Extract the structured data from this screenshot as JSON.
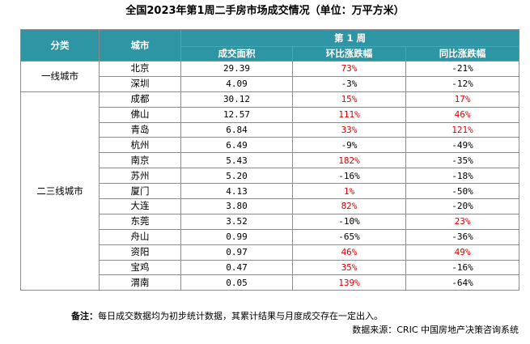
{
  "title": "全国2023年第1周二手房市场成交情况（单位：万平方米）",
  "headers": {
    "category": "分类",
    "city": "城市",
    "week": "第 1 周",
    "area": "成交面积",
    "mom": "环比涨跌幅",
    "yoy": "同比涨跌幅"
  },
  "groups": [
    {
      "name": "一线城市",
      "rows": [
        {
          "city": "北京",
          "area": "29.39",
          "mom": "73%",
          "yoy": "-21%"
        },
        {
          "city": "深圳",
          "area": "4.09",
          "mom": "-3%",
          "yoy": "-12%"
        }
      ]
    },
    {
      "name": "二三线城市",
      "rows": [
        {
          "city": "成都",
          "area": "30.12",
          "mom": "15%",
          "yoy": "17%"
        },
        {
          "city": "佛山",
          "area": "12.57",
          "mom": "111%",
          "yoy": "46%"
        },
        {
          "city": "青岛",
          "area": "6.84",
          "mom": "33%",
          "yoy": "121%"
        },
        {
          "city": "杭州",
          "area": "6.49",
          "mom": "-9%",
          "yoy": "-49%"
        },
        {
          "city": "南京",
          "area": "5.43",
          "mom": "182%",
          "yoy": "-35%"
        },
        {
          "city": "苏州",
          "area": "5.20",
          "mom": "-16%",
          "yoy": "-18%"
        },
        {
          "city": "厦门",
          "area": "4.13",
          "mom": "1%",
          "yoy": "-50%"
        },
        {
          "city": "大连",
          "area": "3.80",
          "mom": "82%",
          "yoy": "-20%"
        },
        {
          "city": "东莞",
          "area": "3.52",
          "mom": "-10%",
          "yoy": "23%"
        },
        {
          "city": "舟山",
          "area": "0.99",
          "mom": "-65%",
          "yoy": "-36%"
        },
        {
          "city": "资阳",
          "area": "0.97",
          "mom": "46%",
          "yoy": "49%"
        },
        {
          "city": "宝鸡",
          "area": "0.47",
          "mom": "35%",
          "yoy": "-16%"
        },
        {
          "city": "渭南",
          "area": "0.05",
          "mom": "139%",
          "yoy": "-64%"
        }
      ]
    }
  ],
  "note_label": "备注：",
  "note_text": "每日成交数据均为初步统计数据，其累计结果与月度成交存在一定出入。",
  "source": "数据来源：CRIC 中国房地产决策咨询系统",
  "colors": {
    "header_bg": "#2e95a5",
    "positive": "#e00000",
    "negative": "#000000"
  }
}
